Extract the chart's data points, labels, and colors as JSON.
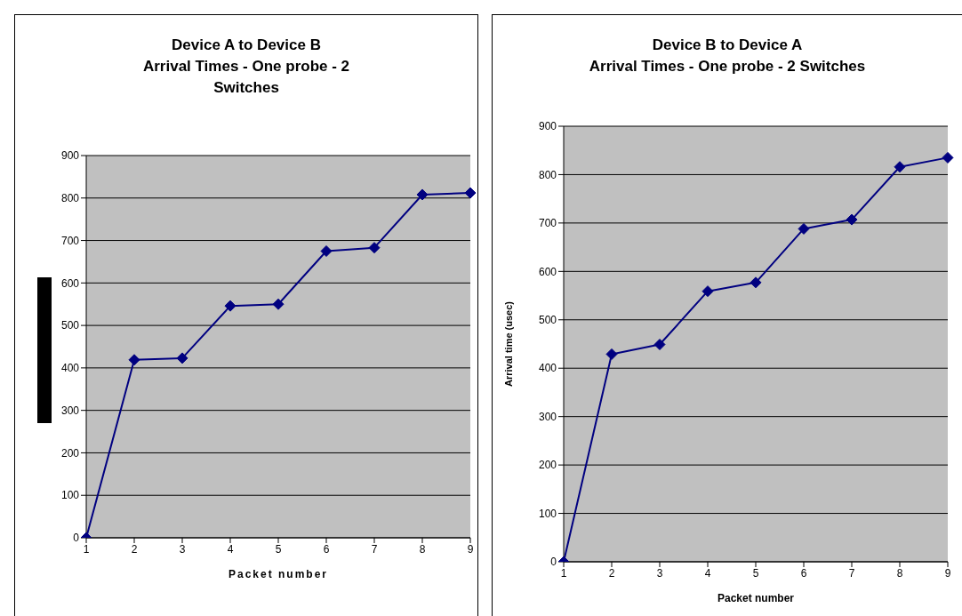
{
  "chart_data": [
    {
      "type": "line",
      "title": "Device A to Device B",
      "subtitle": "Arrival Times - One probe - 2 Switches",
      "xlabel": "Packet number",
      "categories": [
        "1",
        "2",
        "3",
        "4",
        "5",
        "6",
        "7",
        "8",
        "9"
      ],
      "series": [
        {
          "color": "#000080",
          "values": [
            0,
            419,
            423,
            546,
            550,
            675,
            683,
            808,
            812
          ]
        }
      ],
      "ylim": [
        0,
        900
      ],
      "yticks": [
        0,
        100,
        200,
        300,
        400,
        500,
        600,
        700,
        800,
        900
      ],
      "grid": "y",
      "legend": false,
      "marker": "diamond",
      "line_style": "solid"
    },
    {
      "type": "line",
      "title": "Device B to Device A",
      "subtitle": "Arrival Times - One probe - 2 Switches",
      "xlabel": "Packet number",
      "ylabel": "Arrival time (usec)",
      "categories": [
        "1",
        "2",
        "3",
        "4",
        "5",
        "6",
        "7",
        "8",
        "9"
      ],
      "series": [
        {
          "color": "#000080",
          "values": [
            0,
            429,
            449,
            559,
            577,
            688,
            707,
            816,
            835
          ]
        }
      ],
      "ylim": [
        0,
        900
      ],
      "yticks": [
        0,
        100,
        200,
        300,
        400,
        500,
        600,
        700,
        800,
        900
      ],
      "grid": "y",
      "legend": false,
      "marker": "diamond",
      "line_style": "solid"
    }
  ]
}
